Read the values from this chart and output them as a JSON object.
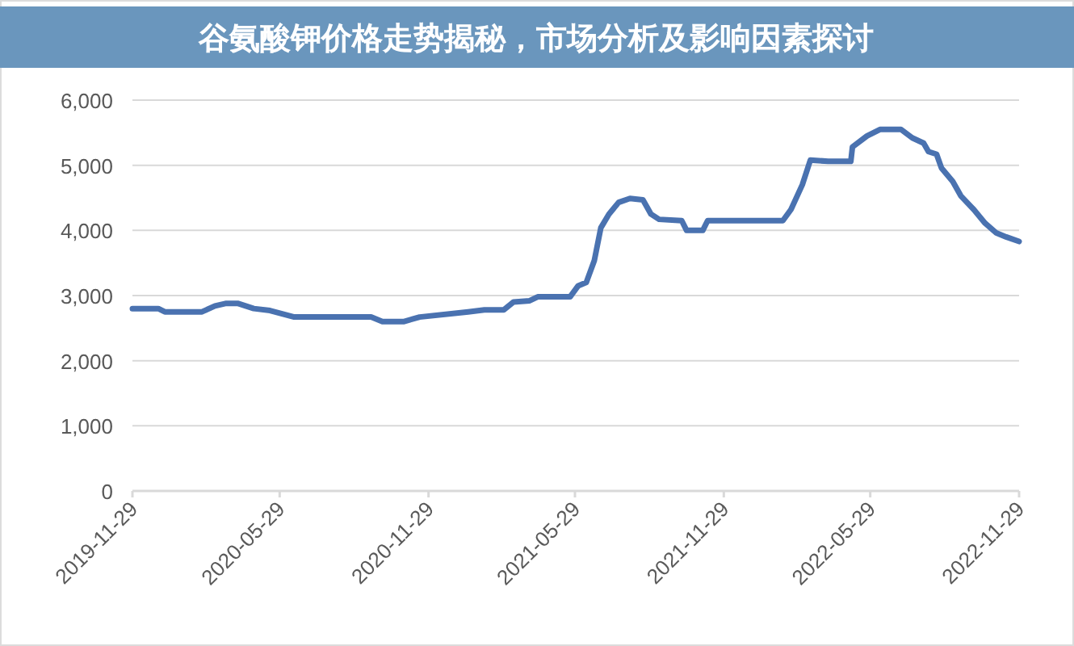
{
  "chart_data": {
    "type": "line",
    "title": "谷氨酸钾价格走势揭秘，市场分析及影响因素探讨",
    "x": [
      "2019-11-29",
      "2019-12-31",
      "2020-01-08",
      "2020-02-23",
      "2020-03-10",
      "2020-03-24",
      "2020-04-07",
      "2020-04-27",
      "2020-05-17",
      "2020-06-16",
      "2020-09-19",
      "2020-10-03",
      "2020-10-29",
      "2020-11-18",
      "2021-01-17",
      "2021-02-06",
      "2021-03-02",
      "2021-03-14",
      "2021-04-03",
      "2021-04-13",
      "2021-05-23",
      "2021-06-02",
      "2021-06-12",
      "2021-06-22",
      "2021-06-30",
      "2021-07-10",
      "2021-07-22",
      "2021-08-05",
      "2021-08-21",
      "2021-08-31",
      "2021-09-10",
      "2021-10-08",
      "2021-10-14",
      "2021-11-03",
      "2021-11-09",
      "2022-02-10",
      "2022-02-20",
      "2022-03-06",
      "2022-03-16",
      "2022-04-07",
      "2022-05-05",
      "2022-05-07",
      "2022-05-25",
      "2022-06-10",
      "2022-07-06",
      "2022-07-20",
      "2022-08-03",
      "2022-08-09",
      "2022-08-19",
      "2022-08-25",
      "2022-09-08",
      "2022-09-18",
      "2022-10-04",
      "2022-10-18",
      "2022-11-01",
      "2022-11-13",
      "2022-11-29"
    ],
    "series": [
      {
        "color": "#4a72b0",
        "values": [
          2800,
          2800,
          2750,
          2750,
          2840,
          2880,
          2880,
          2800,
          2770,
          2670,
          2670,
          2600,
          2600,
          2670,
          2750,
          2780,
          2780,
          2900,
          2920,
          2980,
          2980,
          3150,
          3200,
          3540,
          4040,
          4250,
          4430,
          4490,
          4470,
          4250,
          4170,
          4150,
          4000,
          4000,
          4150,
          4150,
          4320,
          4700,
          5080,
          5060,
          5060,
          5280,
          5450,
          5550,
          5550,
          5420,
          5340,
          5210,
          5170,
          4960,
          4750,
          4530,
          4320,
          4110,
          3960,
          3900,
          3830
        ]
      }
    ],
    "xlim": [
      "2019-11-29",
      "2022-11-29"
    ],
    "xticks": [
      {
        "value": "2019-11-29",
        "label": "2019-11-29"
      },
      {
        "value": "2020-05-29",
        "label": "2020-05-29"
      },
      {
        "value": "2020-11-29",
        "label": "2020-11-29"
      },
      {
        "value": "2021-05-29",
        "label": "2021-05-29"
      },
      {
        "value": "2021-11-29",
        "label": "2021-11-29"
      },
      {
        "value": "2022-05-29",
        "label": "2022-05-29"
      },
      {
        "value": "2022-11-29",
        "label": "2022-11-29"
      }
    ],
    "ylim": [
      0,
      6000
    ],
    "yticks": [
      {
        "value": 0,
        "label": "0"
      },
      {
        "value": 1000,
        "label": "1,000"
      },
      {
        "value": 2000,
        "label": "2,000"
      },
      {
        "value": 3000,
        "label": "3,000"
      },
      {
        "value": 4000,
        "label": "4,000"
      },
      {
        "value": 5000,
        "label": "5,000"
      },
      {
        "value": 6000,
        "label": "6,000"
      }
    ],
    "grid": "y",
    "marker": "none",
    "line_style": "solid"
  }
}
